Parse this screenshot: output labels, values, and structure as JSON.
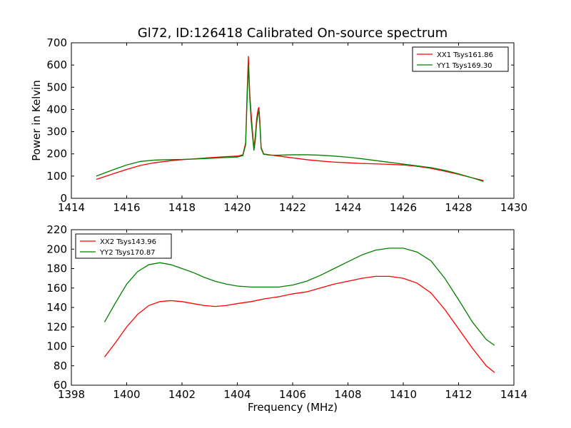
{
  "title": "Gl72, ID:126418 Calibrated On-source spectrum",
  "chart_data": [
    {
      "type": "line",
      "title": "Gl72, ID:126418 Calibrated On-source spectrum",
      "xlabel": "",
      "ylabel": "Power in Kelvin",
      "xlim": [
        1414,
        1430
      ],
      "ylim": [
        0,
        700
      ],
      "xticks": [
        1414,
        1416,
        1418,
        1420,
        1422,
        1424,
        1426,
        1428,
        1430
      ],
      "yticks": [
        0,
        100,
        200,
        300,
        400,
        500,
        600,
        700
      ],
      "grid": false,
      "legend_position": "top-right",
      "series": [
        {
          "name": "XX1 Tsys161.86",
          "color": "#ff0000",
          "x": [
            1414.9,
            1415.5,
            1416,
            1416.5,
            1417,
            1417.5,
            1418,
            1418.5,
            1419,
            1419.5,
            1420,
            1420.2,
            1420.3,
            1420.35,
            1420.4,
            1420.45,
            1420.5,
            1420.55,
            1420.6,
            1420.65,
            1420.7,
            1420.75,
            1420.78,
            1420.82,
            1420.86,
            1420.95,
            1421.2,
            1421.5,
            1422,
            1422.5,
            1423,
            1423.5,
            1424,
            1424.5,
            1425,
            1425.5,
            1426,
            1426.5,
            1427,
            1427.5,
            1428,
            1428.5,
            1428.9
          ],
          "y": [
            85,
            110,
            130,
            148,
            160,
            168,
            174,
            178,
            183,
            187,
            190,
            196,
            250,
            460,
            640,
            470,
            380,
            300,
            225,
            280,
            360,
            400,
            410,
            340,
            230,
            200,
            195,
            190,
            182,
            174,
            168,
            163,
            160,
            157,
            155,
            153,
            150,
            144,
            135,
            122,
            108,
            92,
            80
          ]
        },
        {
          "name": "YY1 Tsys169.30",
          "color": "#008000",
          "x": [
            1414.9,
            1415.5,
            1416,
            1416.5,
            1417,
            1417.5,
            1418,
            1418.5,
            1419,
            1419.5,
            1420,
            1420.2,
            1420.3,
            1420.35,
            1420.4,
            1420.45,
            1420.5,
            1420.55,
            1420.6,
            1420.65,
            1420.7,
            1420.75,
            1420.78,
            1420.82,
            1420.86,
            1420.95,
            1421.2,
            1421.5,
            1422,
            1422.5,
            1423,
            1423.5,
            1424,
            1424.5,
            1425,
            1425.5,
            1426,
            1426.5,
            1427,
            1427.5,
            1428,
            1428.5,
            1428.9
          ],
          "y": [
            100,
            128,
            150,
            166,
            172,
            174,
            175,
            177,
            180,
            183,
            186,
            192,
            240,
            430,
            600,
            450,
            350,
            280,
            215,
            260,
            340,
            380,
            395,
            320,
            225,
            198,
            194,
            194,
            196,
            196,
            194,
            190,
            185,
            178,
            170,
            162,
            154,
            146,
            138,
            126,
            110,
            92,
            76
          ]
        }
      ]
    },
    {
      "type": "line",
      "title": "",
      "xlabel": "Frequency (MHz)",
      "ylabel": "",
      "xlim": [
        1398,
        1414
      ],
      "ylim": [
        60,
        220
      ],
      "xticks": [
        1398,
        1400,
        1402,
        1404,
        1406,
        1408,
        1410,
        1412,
        1414
      ],
      "yticks": [
        60,
        80,
        100,
        120,
        140,
        160,
        180,
        200,
        220
      ],
      "grid": false,
      "legend_position": "top-left",
      "series": [
        {
          "name": "XX2 Tsys143.96",
          "color": "#ff0000",
          "x": [
            1399.2,
            1399.6,
            1400,
            1400.4,
            1400.8,
            1401.2,
            1401.6,
            1402,
            1402.4,
            1402.8,
            1403.2,
            1403.6,
            1404,
            1404.5,
            1405,
            1405.5,
            1406,
            1406.5,
            1407,
            1407.5,
            1408,
            1408.5,
            1409,
            1409.5,
            1410,
            1410.5,
            1411,
            1411.5,
            1412,
            1412.5,
            1413,
            1413.3
          ],
          "y": [
            89,
            104,
            120,
            133,
            142,
            146,
            147,
            146,
            144,
            142,
            141,
            142,
            144,
            146,
            149,
            151,
            154,
            156,
            160,
            164,
            167,
            170,
            172,
            172,
            170,
            165,
            155,
            138,
            118,
            98,
            80,
            73
          ]
        },
        {
          "name": "YY2 Tsys170.87",
          "color": "#008000",
          "x": [
            1399.2,
            1399.6,
            1400,
            1400.4,
            1400.8,
            1401.2,
            1401.6,
            1402,
            1402.4,
            1402.8,
            1403.2,
            1403.6,
            1404,
            1404.5,
            1405,
            1405.5,
            1406,
            1406.5,
            1407,
            1407.5,
            1408,
            1408.5,
            1409,
            1409.5,
            1410,
            1410.5,
            1411,
            1411.5,
            1412,
            1412.5,
            1413,
            1413.3
          ],
          "y": [
            125,
            145,
            164,
            177,
            184,
            186,
            184,
            180,
            176,
            171,
            167,
            164,
            162,
            161,
            161,
            161,
            163,
            167,
            173,
            180,
            187,
            194,
            199,
            201,
            201,
            197,
            188,
            170,
            148,
            125,
            107,
            101
          ]
        }
      ]
    }
  ]
}
